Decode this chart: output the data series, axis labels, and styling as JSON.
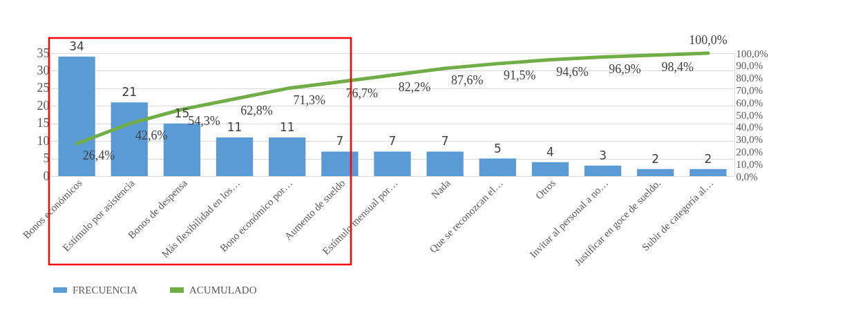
{
  "chart_data": {
    "type": "bar",
    "categories": [
      "Bonos económicos",
      "Estímulo por asistencia",
      "Bonos de despensa",
      "Más flexibilidad en los…",
      "Bono económico por…",
      "Aumento de sueldo",
      "Estímulo mensual por…",
      "Nada",
      "Que se reconozcan el…",
      "Otros",
      "Invitar al personal a no…",
      "Justificar en goce de sueldo.",
      "Subir de categoría al…"
    ],
    "series": [
      {
        "name": "FRECUENCIA",
        "color": "#5b9bd5",
        "values": [
          34,
          21,
          15,
          11,
          11,
          7,
          7,
          7,
          5,
          4,
          3,
          2,
          2
        ]
      },
      {
        "name": "ACUMULADO",
        "type": "line",
        "axis": "y2",
        "color": "#70ad47",
        "values": [
          26.4,
          42.6,
          54.3,
          62.8,
          71.3,
          76.7,
          82.2,
          87.6,
          91.5,
          94.6,
          96.9,
          98.4,
          100.0
        ],
        "value_labels": [
          "26,4%",
          "42,6%",
          "54,3%",
          "62,8%",
          "71,3%",
          "76,7%",
          "82,2%",
          "87,6%",
          "91,5%",
          "94,6%",
          "96,9%",
          "98,4%",
          "100,0%"
        ]
      }
    ],
    "ylim": [
      0,
      35
    ],
    "yticks": [
      0,
      5,
      10,
      15,
      20,
      25,
      30,
      35
    ],
    "y2lim": [
      0,
      100
    ],
    "y2ticks": [
      {
        "value": 0,
        "label": "0,0%"
      },
      {
        "value": 10,
        "label": "10,0%"
      },
      {
        "value": 20,
        "label": "20,0%"
      },
      {
        "value": 30,
        "label": "30,0%"
      },
      {
        "value": 40,
        "label": "40,0%"
      },
      {
        "value": 50,
        "label": "50,0%"
      },
      {
        "value": 60,
        "label": "60,0%"
      },
      {
        "value": 70,
        "label": "70,0%"
      },
      {
        "value": 80,
        "label": "80,0%"
      },
      {
        "value": 90,
        "label": "90,0%"
      },
      {
        "value": 100,
        "label": "100,0%"
      }
    ],
    "data_labels": true,
    "grid": "y",
    "legend": "bottom",
    "line_style": "solid",
    "marker": "none"
  }
}
